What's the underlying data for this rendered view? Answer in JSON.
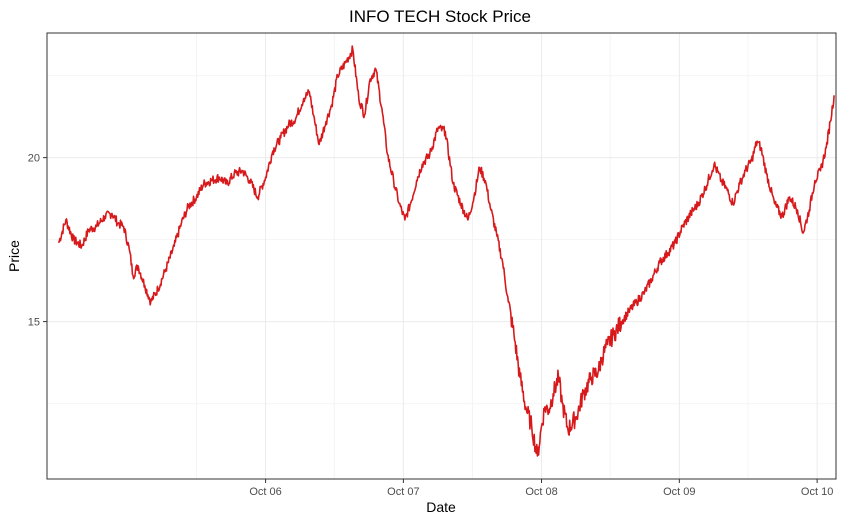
{
  "chart_data": {
    "type": "line",
    "title": "INFO TECH Stock Price",
    "xlabel": "Date",
    "ylabel": "Price",
    "x_ticks": [
      "Oct 06",
      "Oct 07",
      "Oct 08",
      "Oct 09",
      "Oct 10"
    ],
    "y_ticks": [
      15,
      20
    ],
    "xlim": [
      "2005-03-01",
      "2010-11-20"
    ],
    "ylim": [
      10.2,
      23.8
    ],
    "grid": true,
    "legend": "none",
    "line_color": "#d7191c",
    "series": [
      {
        "x": [
          "2005-04-01",
          "2005-04-20",
          "2005-05-10",
          "2005-06-01",
          "2005-06-20",
          "2005-07-10",
          "2005-08-01",
          "2005-08-20",
          "2005-09-05",
          "2005-09-20",
          "2005-10-05",
          "2005-10-15",
          "2005-10-28",
          "2005-11-15",
          "2005-12-01",
          "2005-12-20",
          "2006-01-10",
          "2006-02-01",
          "2006-02-20",
          "2006-03-10",
          "2006-04-01",
          "2006-04-20",
          "2006-05-10",
          "2006-06-01",
          "2006-06-20",
          "2006-07-10",
          "2006-08-01",
          "2006-08-20",
          "2006-09-10",
          "2006-10-01",
          "2006-10-20",
          "2006-11-10",
          "2006-12-01",
          "2006-12-20",
          "2007-01-10",
          "2007-01-25",
          "2007-02-05",
          "2007-02-20",
          "2007-03-10",
          "2007-03-25",
          "2007-04-10",
          "2007-05-01",
          "2007-05-20",
          "2007-06-05",
          "2007-06-20",
          "2007-07-05",
          "2007-07-20",
          "2007-08-05",
          "2007-08-20",
          "2007-09-05",
          "2007-09-20",
          "2007-10-05",
          "2007-10-20",
          "2007-11-05",
          "2007-11-20",
          "2007-12-10",
          "2008-01-01",
          "2008-01-20",
          "2008-02-10",
          "2008-03-01",
          "2008-03-20",
          "2008-04-05",
          "2008-04-20",
          "2008-05-05",
          "2008-05-20",
          "2008-06-05",
          "2008-06-20",
          "2008-07-05",
          "2008-07-20",
          "2008-08-05",
          "2008-08-20",
          "2008-09-05",
          "2008-09-20",
          "2008-10-01",
          "2008-10-10",
          "2008-10-20",
          "2008-11-01",
          "2008-11-15",
          "2008-11-25",
          "2008-12-10",
          "2009-01-01",
          "2009-01-20",
          "2009-02-10",
          "2009-03-01",
          "2009-03-10",
          "2009-03-25",
          "2009-04-10",
          "2009-05-01",
          "2009-05-20",
          "2009-06-10",
          "2009-07-01",
          "2009-07-20",
          "2009-08-10",
          "2009-09-01",
          "2009-09-20",
          "2009-10-10",
          "2009-11-01",
          "2009-11-20",
          "2009-12-10",
          "2010-01-01",
          "2010-01-20",
          "2010-02-05",
          "2010-02-20",
          "2010-03-10",
          "2010-03-25",
          "2010-04-10",
          "2010-04-25",
          "2010-05-05",
          "2010-05-20",
          "2010-06-10",
          "2010-06-30",
          "2010-07-20",
          "2010-08-10",
          "2010-08-25",
          "2010-09-10",
          "2010-09-25",
          "2010-10-10",
          "2010-10-25",
          "2010-11-05",
          "2010-11-15"
        ],
        "y": [
          17.4,
          18.1,
          17.5,
          17.3,
          17.8,
          17.9,
          18.2,
          18.3,
          18.0,
          17.9,
          17.2,
          16.4,
          16.7,
          16.1,
          15.6,
          16.0,
          16.6,
          17.3,
          18.0,
          18.5,
          18.8,
          19.2,
          19.3,
          19.4,
          19.2,
          19.5,
          19.6,
          19.3,
          18.8,
          19.4,
          20.2,
          20.6,
          21.0,
          21.2,
          21.8,
          22.0,
          21.3,
          20.4,
          21.1,
          21.6,
          22.5,
          22.9,
          23.3,
          21.8,
          21.3,
          22.4,
          22.7,
          21.5,
          20.1,
          19.3,
          18.6,
          18.1,
          18.6,
          19.3,
          19.8,
          20.1,
          20.9,
          20.8,
          19.2,
          18.6,
          18.1,
          18.8,
          19.7,
          19.3,
          18.4,
          17.6,
          16.8,
          15.6,
          14.6,
          13.3,
          12.4,
          11.8,
          10.9,
          11.8,
          12.4,
          12.3,
          12.8,
          13.3,
          12.5,
          11.7,
          12.1,
          12.8,
          13.3,
          13.5,
          13.9,
          14.3,
          14.6,
          15.0,
          15.3,
          15.6,
          15.9,
          16.3,
          16.8,
          17.1,
          17.4,
          17.9,
          18.3,
          18.6,
          19.1,
          19.8,
          19.3,
          19.0,
          18.6,
          19.2,
          19.6,
          19.9,
          20.5,
          20.3,
          19.5,
          18.6,
          18.2,
          18.8,
          18.4,
          17.7,
          18.4,
          19.3,
          19.6,
          20.3,
          21.1,
          21.9
        ]
      }
    ]
  }
}
